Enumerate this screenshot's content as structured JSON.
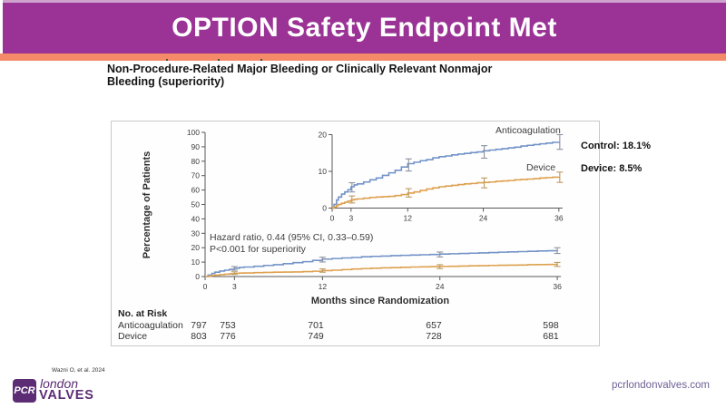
{
  "slide": {
    "title": "OPTION Safety Endpoint Met",
    "subtitle_line1": "Non-Procedure-Related Major Bleeding or Clinically Relevant Nonmajor",
    "subtitle_line2": "Bleeding (superiority)",
    "footer_citation": "Wazni O, et al. 2024",
    "footer_url": "pcrlondonvalves.com",
    "logo": {
      "pcr": "PCR",
      "london": "london",
      "valves": "VALVES"
    },
    "colors": {
      "header_purple": "#9a3395",
      "header_top_strip": "#cda3ce",
      "accent_orange": "#f58a68",
      "logo_purple": "#5c2d74",
      "url_purple": "#6e5f94"
    }
  },
  "annotations": {
    "hazard_line1": "Hazard ratio, 0.44 (95% CI, 0.33–0.59)",
    "hazard_line2": "P<0.001 for superiority",
    "control_result": "Control: 18.1%",
    "device_result": "Device: 8.5%",
    "label_anticoagulation": "Anticoagulation",
    "label_device": "Device"
  },
  "risk_table": {
    "header": "No. at Risk",
    "rows": [
      {
        "label": "Anticoagulation",
        "values": [
          "797",
          "753",
          "701",
          "657",
          "598"
        ]
      },
      {
        "label": "Device",
        "values": [
          "803",
          "776",
          "749",
          "728",
          "681"
        ]
      }
    ]
  },
  "chart_data": {
    "type": "line",
    "title": "Non-procedure-related major bleeding or clinically relevant nonmajor bleeding",
    "xlabel": "Months since Randomization",
    "ylabel": "Percentage of Patients",
    "x_ticks": [
      0,
      3,
      12,
      24,
      36
    ],
    "main_axis": {
      "ylim": [
        0,
        100
      ],
      "yticks": [
        0,
        10,
        20,
        30,
        40,
        50,
        60,
        70,
        80,
        90,
        100
      ]
    },
    "inset_axis": {
      "ylim": [
        0,
        20
      ],
      "yticks": [
        0,
        10,
        20
      ]
    },
    "legend_position": "inset-curve-labels",
    "grid": false,
    "axis_color": "#55585c",
    "tick_text_color": "#3c3c3c",
    "series": [
      {
        "name": "Anticoagulation",
        "color": "#7293c8",
        "ebar_color": "#8b93a0",
        "x": [
          0,
          0.3,
          0.7,
          1,
          1.5,
          2,
          2.5,
          3,
          3.5,
          4,
          5,
          6,
          7,
          8,
          9,
          10,
          11,
          12,
          13,
          14,
          15,
          16,
          17,
          18,
          19,
          20,
          21,
          22,
          23,
          24,
          25,
          26,
          27,
          28,
          29,
          30,
          31,
          32,
          33,
          34,
          35,
          36
        ],
        "y": [
          0,
          1.0,
          2.2,
          3.0,
          3.8,
          4.4,
          5.0,
          5.8,
          6.3,
          6.6,
          7.1,
          7.7,
          8.2,
          8.9,
          9.6,
          10.3,
          11.2,
          12.1,
          12.5,
          12.9,
          13.2,
          13.7,
          14.0,
          14.2,
          14.5,
          14.7,
          14.9,
          15.1,
          15.3,
          15.6,
          15.8,
          16.0,
          16.2,
          16.4,
          16.6,
          16.9,
          17.1,
          17.3,
          17.5,
          17.7,
          17.9,
          18.1
        ]
      },
      {
        "name": "Device",
        "color": "#dda14f",
        "ebar_color": "#bb9a62",
        "x": [
          0,
          0.3,
          0.7,
          1,
          1.5,
          2,
          2.5,
          3,
          3.5,
          4,
          5,
          6,
          7,
          8,
          9,
          10,
          11,
          12,
          13,
          14,
          15,
          16,
          17,
          18,
          19,
          20,
          21,
          22,
          23,
          24,
          25,
          26,
          27,
          28,
          29,
          30,
          31,
          32,
          33,
          34,
          35,
          36
        ],
        "y": [
          0,
          0.3,
          0.7,
          1.0,
          1.3,
          1.6,
          1.9,
          2.2,
          2.4,
          2.5,
          2.7,
          2.9,
          3.0,
          3.1,
          3.2,
          3.4,
          3.7,
          4.1,
          4.4,
          4.8,
          5.2,
          5.5,
          5.8,
          6.0,
          6.2,
          6.4,
          6.6,
          6.7,
          6.9,
          7.0,
          7.1,
          7.3,
          7.4,
          7.5,
          7.7,
          7.8,
          7.9,
          8.0,
          8.2,
          8.3,
          8.4,
          8.5
        ]
      }
    ],
    "error_bars": [
      {
        "series": "Anticoagulation",
        "x": [
          3,
          12,
          24,
          36
        ],
        "low": [
          4.4,
          10.1,
          13.6,
          16.0
        ],
        "high": [
          6.9,
          13.4,
          17.0,
          20.0
        ]
      },
      {
        "series": "Device",
        "x": [
          3,
          12,
          24,
          36
        ],
        "low": [
          1.4,
          3.0,
          5.5,
          7.0
        ],
        "high": [
          3.3,
          5.3,
          8.2,
          9.8
        ]
      }
    ],
    "endpoints": {
      "control_pct": 18.1,
      "device_pct": 8.5
    }
  }
}
